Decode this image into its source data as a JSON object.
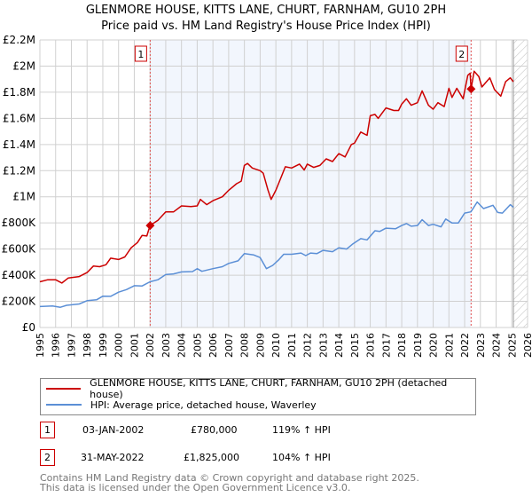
{
  "title_line1": "GLENMORE HOUSE, KITTS LANE, CHURT, FARNHAM, GU10 2PH",
  "title_line2": "Price paid vs. HM Land Registry's House Price Index (HPI)",
  "chart_data": {
    "type": "line",
    "title": "GLENMORE HOUSE, KITTS LANE, CHURT, FARNHAM, GU10 2PH - Price paid vs. HM Land Registry's House Price Index (HPI)",
    "xlim": [
      1995,
      2026
    ],
    "ylim": [
      0,
      2200000
    ],
    "x_ticks": [
      "1995",
      "1996",
      "1997",
      "1998",
      "1999",
      "2000",
      "2001",
      "2002",
      "2003",
      "2004",
      "2005",
      "2006",
      "2007",
      "2008",
      "2009",
      "2010",
      "2011",
      "2012",
      "2013",
      "2014",
      "2015",
      "2016",
      "2017",
      "2018",
      "2019",
      "2020",
      "2021",
      "2022",
      "2023",
      "2024",
      "2025",
      "2026"
    ],
    "y_ticks": [
      {
        "v": 0,
        "label": "£0"
      },
      {
        "v": 200000,
        "label": "£200K"
      },
      {
        "v": 400000,
        "label": "£400K"
      },
      {
        "v": 600000,
        "label": "£600K"
      },
      {
        "v": 800000,
        "label": "£800K"
      },
      {
        "v": 1000000,
        "label": "£1M"
      },
      {
        "v": 1200000,
        "label": "£1.2M"
      },
      {
        "v": 1400000,
        "label": "£1.4M"
      },
      {
        "v": 1600000,
        "label": "£1.6M"
      },
      {
        "v": 1800000,
        "label": "£1.8M"
      },
      {
        "v": 2000000,
        "label": "£2M"
      },
      {
        "v": 2200000,
        "label": "£2.2M"
      }
    ],
    "grid": true,
    "shaded_range": [
      2002.01,
      2022.41
    ],
    "hatched_from": 2025.1,
    "series": [
      {
        "name": "GLENMORE HOUSE, KITTS LANE, CHURT, FARNHAM, GU10 2PH (detached house)",
        "color": "#cc0000",
        "points": [
          [
            1995,
            350000
          ],
          [
            1995.5,
            365000
          ],
          [
            1996,
            365000
          ],
          [
            1996.4,
            340000
          ],
          [
            1996.8,
            378000
          ],
          [
            1997.5,
            390000
          ],
          [
            1998,
            420000
          ],
          [
            1998.4,
            470000
          ],
          [
            1998.8,
            465000
          ],
          [
            1999.2,
            480000
          ],
          [
            1999.5,
            530000
          ],
          [
            2000,
            520000
          ],
          [
            2000.4,
            540000
          ],
          [
            2000.8,
            610000
          ],
          [
            2001.2,
            650000
          ],
          [
            2001.5,
            705000
          ],
          [
            2001.8,
            700000
          ],
          [
            2002,
            780000
          ],
          [
            2002.5,
            820000
          ],
          [
            2003,
            885000
          ],
          [
            2003.5,
            885000
          ],
          [
            2004,
            930000
          ],
          [
            2004.6,
            925000
          ],
          [
            2005,
            930000
          ],
          [
            2005.2,
            980000
          ],
          [
            2005.6,
            940000
          ],
          [
            2006,
            970000
          ],
          [
            2006.6,
            1000000
          ],
          [
            2007,
            1050000
          ],
          [
            2007.5,
            1100000
          ],
          [
            2007.8,
            1120000
          ],
          [
            2008,
            1240000
          ],
          [
            2008.2,
            1255000
          ],
          [
            2008.5,
            1220000
          ],
          [
            2009,
            1200000
          ],
          [
            2009.2,
            1180000
          ],
          [
            2009.5,
            1050000
          ],
          [
            2009.7,
            980000
          ],
          [
            2010,
            1050000
          ],
          [
            2010.3,
            1140000
          ],
          [
            2010.6,
            1230000
          ],
          [
            2011,
            1220000
          ],
          [
            2011.5,
            1250000
          ],
          [
            2011.8,
            1205000
          ],
          [
            2012,
            1250000
          ],
          [
            2012.4,
            1225000
          ],
          [
            2012.8,
            1240000
          ],
          [
            2013.2,
            1290000
          ],
          [
            2013.6,
            1270000
          ],
          [
            2014,
            1330000
          ],
          [
            2014.4,
            1305000
          ],
          [
            2014.8,
            1400000
          ],
          [
            2015,
            1410000
          ],
          [
            2015.4,
            1495000
          ],
          [
            2015.8,
            1470000
          ],
          [
            2016,
            1620000
          ],
          [
            2016.3,
            1630000
          ],
          [
            2016.5,
            1600000
          ],
          [
            2017,
            1680000
          ],
          [
            2017.5,
            1660000
          ],
          [
            2017.8,
            1660000
          ],
          [
            2018,
            1710000
          ],
          [
            2018.3,
            1750000
          ],
          [
            2018.6,
            1700000
          ],
          [
            2019,
            1720000
          ],
          [
            2019.3,
            1810000
          ],
          [
            2019.7,
            1700000
          ],
          [
            2020,
            1670000
          ],
          [
            2020.3,
            1720000
          ],
          [
            2020.7,
            1690000
          ],
          [
            2021,
            1830000
          ],
          [
            2021.2,
            1760000
          ],
          [
            2021.5,
            1830000
          ],
          [
            2021.9,
            1750000
          ],
          [
            2022.2,
            1930000
          ],
          [
            2022.35,
            1945000
          ],
          [
            2022.41,
            1825000
          ],
          [
            2022.6,
            1960000
          ],
          [
            2022.9,
            1920000
          ],
          [
            2023.1,
            1840000
          ],
          [
            2023.6,
            1910000
          ],
          [
            2023.9,
            1820000
          ],
          [
            2024.3,
            1770000
          ],
          [
            2024.6,
            1880000
          ],
          [
            2024.9,
            1910000
          ],
          [
            2025.1,
            1880000
          ]
        ]
      },
      {
        "name": "HPI: Average price, detached house, Waverley",
        "color": "#5b8fd6",
        "points": [
          [
            1995,
            160000
          ],
          [
            1995.8,
            165000
          ],
          [
            1996.3,
            155000
          ],
          [
            1996.7,
            170000
          ],
          [
            1997.5,
            180000
          ],
          [
            1998,
            205000
          ],
          [
            1998.6,
            212000
          ],
          [
            1999,
            240000
          ],
          [
            1999.5,
            238000
          ],
          [
            2000,
            270000
          ],
          [
            2000.5,
            290000
          ],
          [
            2001,
            320000
          ],
          [
            2001.5,
            318000
          ],
          [
            2002,
            350000
          ],
          [
            2002.5,
            365000
          ],
          [
            2003,
            405000
          ],
          [
            2003.5,
            410000
          ],
          [
            2004,
            425000
          ],
          [
            2004.7,
            428000
          ],
          [
            2005,
            450000
          ],
          [
            2005.3,
            430000
          ],
          [
            2006,
            450000
          ],
          [
            2006.6,
            465000
          ],
          [
            2007,
            490000
          ],
          [
            2007.6,
            510000
          ],
          [
            2008,
            565000
          ],
          [
            2008.6,
            555000
          ],
          [
            2009,
            535000
          ],
          [
            2009.4,
            450000
          ],
          [
            2009.8,
            475000
          ],
          [
            2010.2,
            520000
          ],
          [
            2010.5,
            560000
          ],
          [
            2011,
            560000
          ],
          [
            2011.6,
            570000
          ],
          [
            2011.9,
            550000
          ],
          [
            2012.2,
            570000
          ],
          [
            2012.6,
            565000
          ],
          [
            2013,
            590000
          ],
          [
            2013.6,
            580000
          ],
          [
            2014,
            610000
          ],
          [
            2014.5,
            600000
          ],
          [
            2014.9,
            640000
          ],
          [
            2015.4,
            680000
          ],
          [
            2015.8,
            670000
          ],
          [
            2016.3,
            740000
          ],
          [
            2016.6,
            735000
          ],
          [
            2017,
            760000
          ],
          [
            2017.6,
            755000
          ],
          [
            2018,
            780000
          ],
          [
            2018.3,
            795000
          ],
          [
            2018.6,
            775000
          ],
          [
            2019,
            780000
          ],
          [
            2019.3,
            825000
          ],
          [
            2019.7,
            780000
          ],
          [
            2020,
            790000
          ],
          [
            2020.5,
            770000
          ],
          [
            2020.8,
            830000
          ],
          [
            2021.2,
            800000
          ],
          [
            2021.6,
            800000
          ],
          [
            2022,
            875000
          ],
          [
            2022.4,
            885000
          ],
          [
            2022.8,
            960000
          ],
          [
            2023.2,
            910000
          ],
          [
            2023.8,
            935000
          ],
          [
            2024.1,
            880000
          ],
          [
            2024.4,
            875000
          ],
          [
            2024.9,
            940000
          ],
          [
            2025.1,
            920000
          ]
        ]
      }
    ],
    "markers": [
      {
        "label": "1",
        "x": 2002.01,
        "y": 780000
      },
      {
        "label": "2",
        "x": 2022.41,
        "y": 1825000
      }
    ]
  },
  "legend": [
    {
      "label": "GLENMORE HOUSE, KITTS LANE, CHURT, FARNHAM, GU10 2PH (detached house)",
      "color": "#cc0000"
    },
    {
      "label": "HPI: Average price, detached house, Waverley",
      "color": "#5b8fd6"
    }
  ],
  "transactions": [
    {
      "num": "1",
      "date": "03-JAN-2002",
      "price": "£780,000",
      "hpi": "119% ↑ HPI"
    },
    {
      "num": "2",
      "date": "31-MAY-2022",
      "price": "£1,825,000",
      "hpi": "104% ↑ HPI"
    }
  ],
  "footer_line1": "Contains HM Land Registry data © Crown copyright and database right 2025.",
  "footer_line2": "This data is licensed under the Open Government Licence v3.0."
}
